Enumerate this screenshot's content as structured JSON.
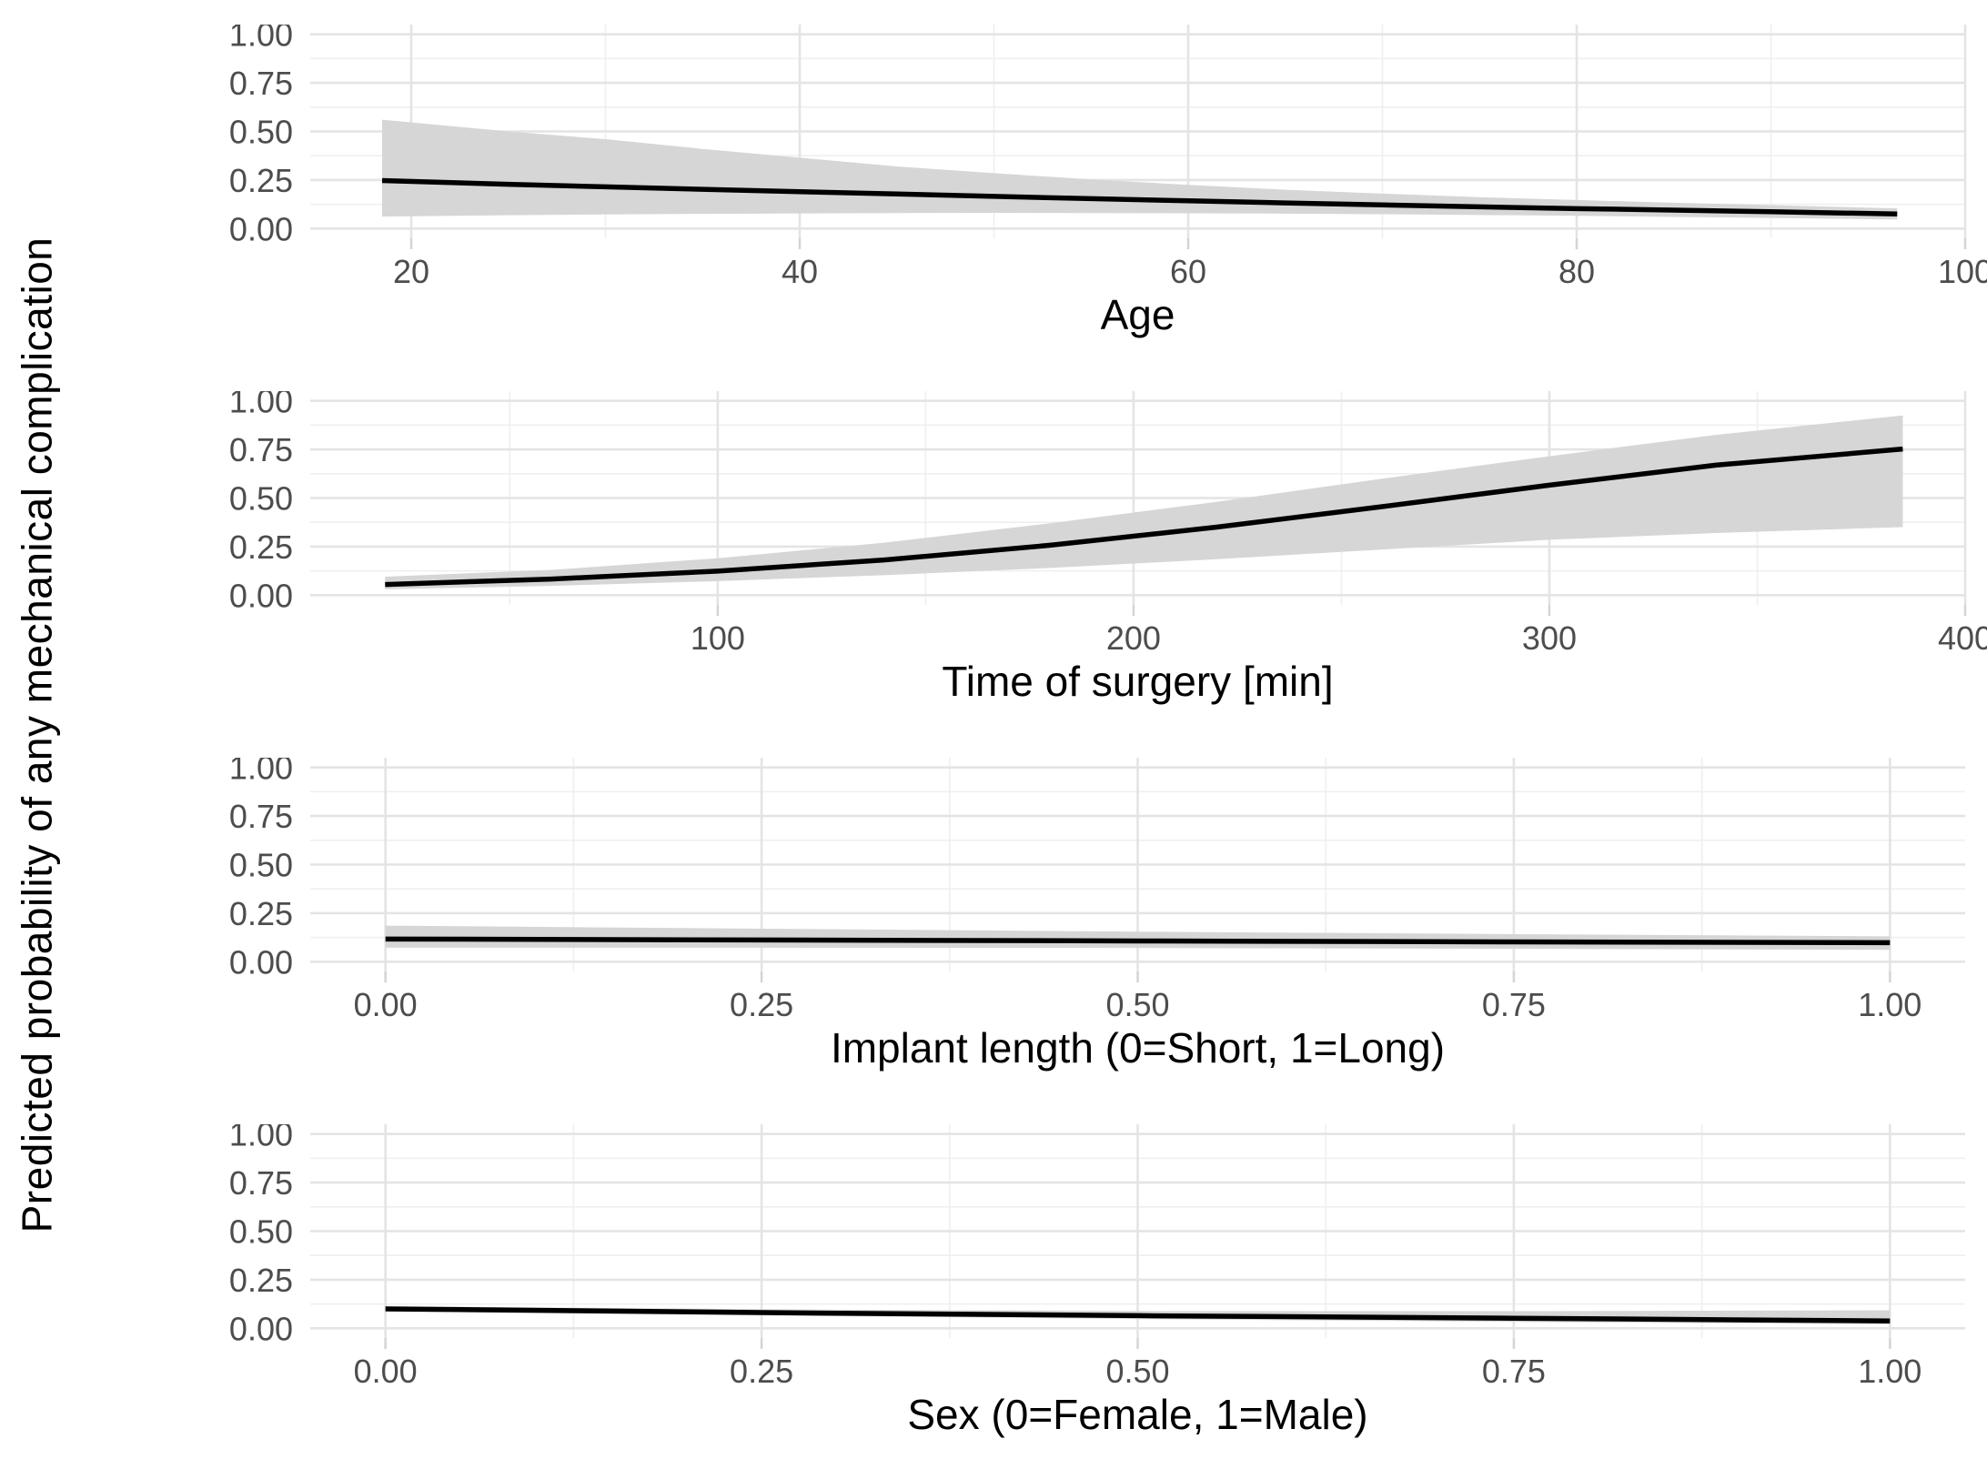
{
  "figure": {
    "y_axis_label": "Predicted probability of any mechanical complication",
    "background_color": "#ffffff",
    "colors": {
      "trend_line": "#000000",
      "confidence_ribbon": "#d6d6d6",
      "grid_major": "#e4e4e4",
      "grid_minor": "#efefef",
      "axis_tick_mark": "#d4d4d4",
      "tick_label_text": "#4d4d4d",
      "axis_title_text": "#000000"
    }
  },
  "y_axis": {
    "range": [
      0,
      1
    ],
    "ticks": [
      {
        "label": "1.00",
        "value": 1.0
      },
      {
        "label": "0.75",
        "value": 0.75
      },
      {
        "label": "0.50",
        "value": 0.5
      },
      {
        "label": "0.25",
        "value": 0.25
      },
      {
        "label": "0.00",
        "value": 0.0
      }
    ],
    "minor": [
      0.875,
      0.625,
      0.375,
      0.125
    ]
  },
  "chart_data": [
    {
      "type": "line",
      "title": "",
      "xlabel": "Age",
      "ylabel": "Predicted probability of any mechanical complication",
      "x_domain": [
        14.8,
        100
      ],
      "ylim": [
        0,
        1
      ],
      "grid": true,
      "legend": "none",
      "x_ticks": [
        {
          "label": "20",
          "value": 20
        },
        {
          "label": "40",
          "value": 40
        },
        {
          "label": "60",
          "value": 60
        },
        {
          "label": "80",
          "value": 80
        },
        {
          "label": "100",
          "value": 100
        }
      ],
      "x_minor": [
        30,
        50,
        70,
        90
      ],
      "series": {
        "name": "predicted probability",
        "x": [
          18.5,
          25,
          30,
          35,
          40,
          45,
          50,
          55,
          60,
          65,
          70,
          75,
          80,
          85,
          90,
          96.5
        ],
        "y": [
          0.247,
          0.228,
          0.215,
          0.202,
          0.19,
          0.178,
          0.166,
          0.154,
          0.143,
          0.132,
          0.122,
          0.112,
          0.103,
          0.095,
          0.087,
          0.075
        ]
      },
      "ribbon": {
        "name": "confidence interval",
        "x": [
          18.5,
          25,
          30,
          35,
          40,
          45,
          50,
          55,
          60,
          65,
          70,
          75,
          80,
          85,
          90,
          96.5
        ],
        "upper": [
          0.56,
          0.5,
          0.46,
          0.41,
          0.365,
          0.32,
          0.285,
          0.253,
          0.225,
          0.2,
          0.18,
          0.162,
          0.147,
          0.133,
          0.121,
          0.104
        ],
        "lower": [
          0.062,
          0.069,
          0.073,
          0.076,
          0.078,
          0.08,
          0.081,
          0.08,
          0.079,
          0.077,
          0.074,
          0.07,
          0.066,
          0.06,
          0.055,
          0.047
        ]
      }
    },
    {
      "type": "line",
      "title": "",
      "xlabel": "Time of surgery [min]",
      "ylabel": "Predicted probability of any mechanical complication",
      "x_domain": [
        2,
        400
      ],
      "ylim": [
        0,
        1
      ],
      "grid": true,
      "legend": "none",
      "x_ticks": [
        {
          "label": "100",
          "value": 100
        },
        {
          "label": "200",
          "value": 200
        },
        {
          "label": "300",
          "value": 300
        },
        {
          "label": "400",
          "value": 400
        }
      ],
      "x_minor": [
        50,
        150,
        250,
        350
      ],
      "series": {
        "name": "predicted probability",
        "x": [
          20,
          60,
          100,
          140,
          180,
          220,
          260,
          300,
          340,
          385
        ],
        "y": [
          0.055,
          0.083,
          0.124,
          0.181,
          0.257,
          0.35,
          0.456,
          0.566,
          0.669,
          0.752
        ]
      },
      "ribbon": {
        "name": "confidence interval",
        "x": [
          20,
          60,
          100,
          140,
          180,
          220,
          260,
          300,
          340,
          385
        ],
        "upper": [
          0.095,
          0.13,
          0.19,
          0.27,
          0.37,
          0.48,
          0.6,
          0.715,
          0.825,
          0.925
        ],
        "lower": [
          0.03,
          0.048,
          0.072,
          0.103,
          0.14,
          0.185,
          0.235,
          0.285,
          0.32,
          0.35
        ]
      }
    },
    {
      "type": "line",
      "title": "",
      "xlabel": "Implant length (0=Short, 1=Long)",
      "ylabel": "Predicted probability of any mechanical complication",
      "x_domain": [
        -0.05,
        1.05
      ],
      "ylim": [
        0,
        1
      ],
      "grid": true,
      "legend": "none",
      "x_ticks": [
        {
          "label": "0.00",
          "value": 0.0
        },
        {
          "label": "0.25",
          "value": 0.25
        },
        {
          "label": "0.50",
          "value": 0.5
        },
        {
          "label": "0.75",
          "value": 0.75
        },
        {
          "label": "1.00",
          "value": 1.0
        }
      ],
      "x_minor": [
        0.125,
        0.375,
        0.625,
        0.875
      ],
      "series": {
        "name": "predicted probability",
        "x": [
          0,
          0.25,
          0.5,
          0.75,
          1
        ],
        "y": [
          0.117,
          0.112,
          0.107,
          0.102,
          0.098
        ]
      },
      "ribbon": {
        "name": "confidence interval",
        "x": [
          0,
          0.25,
          0.5,
          0.75,
          1
        ],
        "upper": [
          0.186,
          0.17,
          0.155,
          0.142,
          0.131
        ],
        "lower": [
          0.072,
          0.072,
          0.071,
          0.067,
          0.061
        ]
      }
    },
    {
      "type": "line",
      "title": "",
      "xlabel": "Sex (0=Female, 1=Male)",
      "ylabel": "Predicted probability of any mechanical complication",
      "x_domain": [
        -0.05,
        1.05
      ],
      "ylim": [
        0,
        1
      ],
      "grid": true,
      "legend": "none",
      "x_ticks": [
        {
          "label": "0.00",
          "value": 0.0
        },
        {
          "label": "0.25",
          "value": 0.25
        },
        {
          "label": "0.50",
          "value": 0.5
        },
        {
          "label": "0.75",
          "value": 0.75
        },
        {
          "label": "1.00",
          "value": 1.0
        }
      ],
      "x_minor": [
        0.125,
        0.375,
        0.625,
        0.875
      ],
      "series": {
        "name": "predicted probability",
        "x": [
          0,
          0.25,
          0.5,
          0.75,
          1
        ],
        "y": [
          0.1,
          0.081,
          0.065,
          0.052,
          0.038
        ]
      },
      "ribbon": {
        "name": "confidence interval",
        "x": [
          0,
          0.25,
          0.5,
          0.75,
          1
        ],
        "upper": [
          0.114,
          0.098,
          0.089,
          0.088,
          0.093
        ],
        "lower": [
          0.087,
          0.066,
          0.048,
          0.033,
          0.021
        ]
      }
    }
  ]
}
